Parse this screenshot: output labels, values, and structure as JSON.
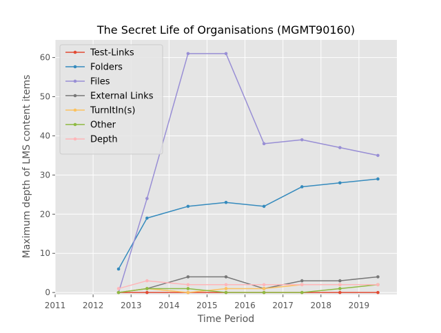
{
  "chart_data": {
    "type": "line",
    "title": "The Secret Life of Organisations (MGMT90160)",
    "xlabel": "Time Period",
    "ylabel": "Maximum depth of LMS content items",
    "xlim": [
      2011,
      2020
    ],
    "ylim": [
      -0.5,
      64.5
    ],
    "x_ticks": [
      2011,
      2012,
      2013,
      2014,
      2015,
      2016,
      2017,
      2018,
      2019
    ],
    "y_ticks": [
      0,
      10,
      20,
      30,
      40,
      50,
      60
    ],
    "grid": true,
    "legend_placement": "top-left",
    "background": "#e5e5e5",
    "x": [
      2012.67,
      2013.42,
      2014.5,
      2015.5,
      2016.5,
      2017.5,
      2018.5,
      2019.5
    ],
    "series": [
      {
        "name": "Test-Links",
        "color": "#e24a33",
        "values": [
          0,
          0,
          0,
          0,
          0,
          0,
          0,
          0
        ]
      },
      {
        "name": "Folders",
        "color": "#348abd",
        "values": [
          6,
          19,
          22,
          23,
          22,
          27,
          28,
          29
        ]
      },
      {
        "name": "Files",
        "color": "#988ed5",
        "values": [
          0,
          24,
          61,
          61,
          38,
          39,
          37,
          35
        ]
      },
      {
        "name": "External Links",
        "color": "#777777",
        "values": [
          0,
          1,
          4,
          4,
          1,
          3,
          3,
          4
        ]
      },
      {
        "name": "TurnItIn(s)",
        "color": "#fbc15e",
        "values": [
          0,
          1,
          0,
          1,
          1,
          2,
          2,
          2
        ]
      },
      {
        "name": "Other",
        "color": "#8eba42",
        "values": [
          0,
          1,
          1,
          0,
          0,
          0,
          1,
          2
        ]
      },
      {
        "name": "Depth",
        "color": "#ffb5b8",
        "values": [
          1,
          3,
          2,
          2,
          2,
          2,
          2,
          2
        ]
      }
    ]
  }
}
